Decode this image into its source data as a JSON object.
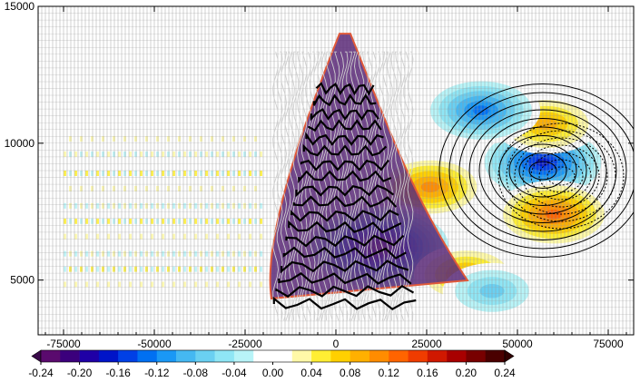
{
  "chart_data": {
    "type": "contour",
    "title": "",
    "xlabel": "",
    "ylabel": "",
    "xlim": [
      -82000,
      82000
    ],
    "ylim": [
      3000,
      15000
    ],
    "x_ticks": [
      -75000,
      -50000,
      -25000,
      0,
      25000,
      50000,
      75000
    ],
    "y_ticks": [
      5000,
      10000,
      15000
    ],
    "x_tick_labels": [
      "-75000",
      "-50000",
      "-25000",
      "0",
      "25000",
      "50000",
      "75000"
    ],
    "y_tick_labels": [
      "5000",
      "10000",
      "15000"
    ],
    "grid": true,
    "colorbar": {
      "orientation": "horizontal",
      "placement": "bottom",
      "extend": "both",
      "levels": [
        -0.24,
        -0.22,
        -0.2,
        -0.18,
        -0.16,
        -0.14,
        -0.12,
        -0.1,
        -0.08,
        -0.06,
        -0.04,
        -0.02,
        0.0,
        0.02,
        0.04,
        0.06,
        0.08,
        0.1,
        0.12,
        0.14,
        0.16,
        0.18,
        0.2,
        0.22,
        0.24
      ],
      "tick_labels": [
        "-0.24",
        "-0.20",
        "-0.16",
        "-0.12",
        "-0.08",
        "-0.04",
        "0.00",
        "0.04",
        "0.08",
        "0.12",
        "0.16",
        "0.20",
        "0.24"
      ],
      "tick_values": [
        -0.24,
        -0.2,
        -0.16,
        -0.12,
        -0.08,
        -0.04,
        0.0,
        0.04,
        0.08,
        0.12,
        0.16,
        0.2,
        0.24
      ],
      "colors": [
        "#5a0a6e",
        "#3b007c",
        "#1f00a6",
        "#0014c8",
        "#0040e6",
        "#0070f2",
        "#1a98f5",
        "#45b8f2",
        "#6ad0f2",
        "#8fe6f5",
        "#b8f4f8",
        "#ffffff",
        "#ffffff",
        "#fff9a8",
        "#ffee33",
        "#ffd000",
        "#ffb000",
        "#ff8c00",
        "#ff6400",
        "#f03c00",
        "#d01800",
        "#a80000",
        "#780000",
        "#4a0000"
      ],
      "under_color": "#3a0a4a",
      "over_color": "#300000"
    },
    "features": [
      {
        "kind": "filled-anomaly",
        "sign": "negative",
        "x_center": 57000,
        "y_center": 9300,
        "peak_value": -0.18
      },
      {
        "kind": "filled-anomaly",
        "sign": "positive",
        "x_center": 60000,
        "y_center": 7400,
        "peak_value": 0.14
      },
      {
        "kind": "filled-anomaly",
        "sign": "positive",
        "x_center": 58000,
        "y_center": 10700,
        "peak_value": 0.1
      },
      {
        "kind": "filled-anomaly",
        "sign": "negative",
        "x_center": 40000,
        "y_center": 11200,
        "peak_value": -0.14
      },
      {
        "kind": "filled-anomaly",
        "sign": "positive",
        "x_center": 26000,
        "y_center": 8400,
        "peak_value": 0.12
      },
      {
        "kind": "filled-anomaly",
        "sign": "negative",
        "x_center": 12000,
        "y_center": 6200,
        "peak_value": -0.24
      },
      {
        "kind": "filled-anomaly",
        "sign": "positive",
        "x_center": 36000,
        "y_center": 5200,
        "peak_value": 0.1
      },
      {
        "kind": "filled-anomaly",
        "sign": "negative",
        "x_center": 43000,
        "y_center": 4600,
        "peak_value": -0.08
      },
      {
        "kind": "wave-train",
        "sign": "mixed",
        "x_range": [
          -75000,
          -20000
        ],
        "y_range": [
          4000,
          11000
        ],
        "amplitude": 0.04
      },
      {
        "kind": "convective-core",
        "x_range": [
          -20000,
          25000
        ],
        "y_range": [
          3000,
          14000
        ]
      },
      {
        "kind": "contour-set",
        "color": "black",
        "x_center": 57000,
        "y_center": 9000,
        "note": "closed solid contours"
      },
      {
        "kind": "contour-set",
        "color": "black",
        "style": "dotted",
        "x_center": 62000,
        "y_center": 8800
      }
    ]
  }
}
